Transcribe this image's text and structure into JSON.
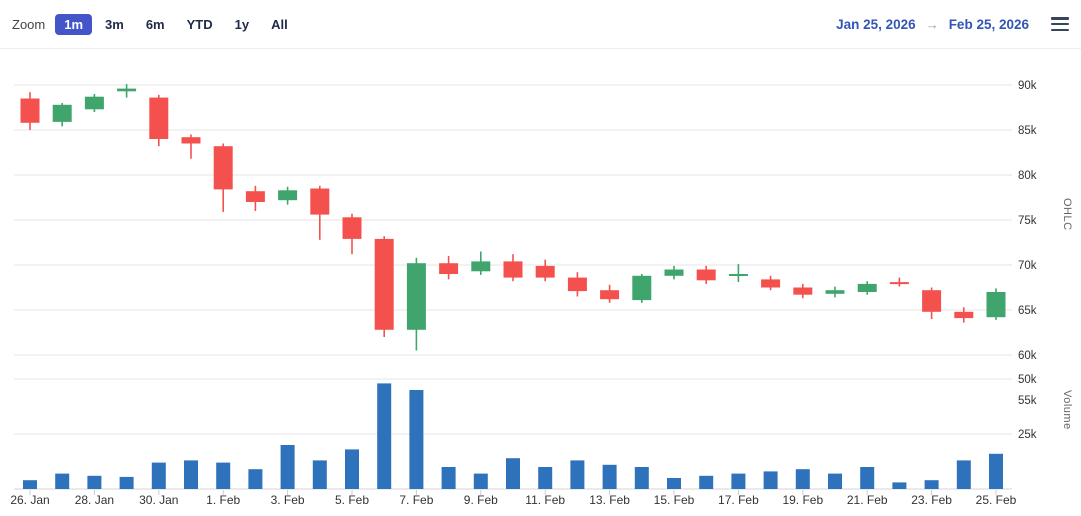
{
  "toolbar": {
    "zoom_label": "Zoom",
    "buttons": [
      {
        "label": "1m",
        "selected": true
      },
      {
        "label": "3m",
        "selected": false
      },
      {
        "label": "6m",
        "selected": false
      },
      {
        "label": "YTD",
        "selected": false
      },
      {
        "label": "1y",
        "selected": false
      },
      {
        "label": "All",
        "selected": false
      }
    ],
    "range_from": "Jan 25, 2026",
    "arrow": "→",
    "range_to": "Feb 25, 2026"
  },
  "colors": {
    "accent": "#4355c9",
    "link": "#3356b5",
    "up": "#3fa56d",
    "down": "#f4514e",
    "volume": "#2d72ba",
    "grid": "#e6e6e6",
    "axis_text": "#333333",
    "baseline": "#d6d6d6"
  },
  "chart_data": [
    {
      "type": "candlestick",
      "title": "",
      "ylabel": "OHLC",
      "units": "values in thousands (k)",
      "ylim_k": [
        55,
        90
      ],
      "y_ticks_k": [
        90,
        85,
        80,
        75,
        70,
        65,
        60,
        55
      ],
      "y_tick_labels": [
        "90k",
        "85k",
        "80k",
        "75k",
        "70k",
        "65k",
        "60k",
        "55k"
      ],
      "x_tick_labels": [
        "26. Jan",
        "28. Jan",
        "30. Jan",
        "1. Feb",
        "3. Feb",
        "5. Feb",
        "7. Feb",
        "9. Feb",
        "11. Feb",
        "13. Feb",
        "15. Feb",
        "17. Feb",
        "19. Feb",
        "21. Feb",
        "23. Feb",
        "25. Feb"
      ],
      "x": [
        "26 Jan",
        "27 Jan",
        "28 Jan",
        "29 Jan",
        "30 Jan",
        "31 Jan",
        "1 Feb",
        "2 Feb",
        "3 Feb",
        "4 Feb",
        "5 Feb",
        "6 Feb",
        "7 Feb",
        "8 Feb",
        "9 Feb",
        "10 Feb",
        "11 Feb",
        "12 Feb",
        "13 Feb",
        "14 Feb",
        "15 Feb",
        "16 Feb",
        "17 Feb",
        "18 Feb",
        "19 Feb",
        "20 Feb",
        "21 Feb",
        "22 Feb",
        "23 Feb",
        "24 Feb",
        "25 Feb"
      ],
      "ohlc_k": [
        [
          88.5,
          89.2,
          85.0,
          85.8
        ],
        [
          85.9,
          88.0,
          85.4,
          87.8
        ],
        [
          87.3,
          89.0,
          87.0,
          88.7
        ],
        [
          89.3,
          90.1,
          88.6,
          89.6
        ],
        [
          88.6,
          88.9,
          83.2,
          84.0
        ],
        [
          84.2,
          84.5,
          81.8,
          83.5
        ],
        [
          83.2,
          83.5,
          75.9,
          78.4
        ],
        [
          78.2,
          78.8,
          76.0,
          77.0
        ],
        [
          77.2,
          78.7,
          76.7,
          78.3
        ],
        [
          78.5,
          78.8,
          72.8,
          75.6
        ],
        [
          75.3,
          75.7,
          71.2,
          72.9
        ],
        [
          72.9,
          73.2,
          62.0,
          62.8
        ],
        [
          62.8,
          70.8,
          60.5,
          70.2
        ],
        [
          70.2,
          71.0,
          68.4,
          69.0
        ],
        [
          69.3,
          71.5,
          68.9,
          70.4
        ],
        [
          70.4,
          71.2,
          68.2,
          68.6
        ],
        [
          69.9,
          70.6,
          68.2,
          68.6
        ],
        [
          68.6,
          69.2,
          66.5,
          67.1
        ],
        [
          67.2,
          67.8,
          65.8,
          66.2
        ],
        [
          66.1,
          69.0,
          65.8,
          68.8
        ],
        [
          68.8,
          69.9,
          68.4,
          69.5
        ],
        [
          69.5,
          69.9,
          67.9,
          68.3
        ],
        [
          68.9,
          70.1,
          68.1,
          69.0
        ],
        [
          68.4,
          68.8,
          67.2,
          67.5
        ],
        [
          67.5,
          67.9,
          66.3,
          66.7
        ],
        [
          66.8,
          67.6,
          66.4,
          67.2
        ],
        [
          67.0,
          68.2,
          66.7,
          67.9
        ],
        [
          68.1,
          68.6,
          67.6,
          67.9
        ],
        [
          67.2,
          67.5,
          64.0,
          64.8
        ],
        [
          64.8,
          65.3,
          63.6,
          64.1
        ],
        [
          64.2,
          67.4,
          63.9,
          67.0
        ]
      ],
      "legend": "none",
      "grid": "horizontal"
    },
    {
      "type": "bar",
      "name": "Volume",
      "ylabel": "Volume",
      "units": "values in thousands (k)",
      "ylim_k": [
        0,
        55
      ],
      "y_ticks_k": [
        50,
        25
      ],
      "y_tick_labels": [
        "50k",
        "25k"
      ],
      "x_shared_with": "candlestick",
      "values_k": [
        4,
        7,
        6,
        5.5,
        12,
        13,
        12,
        9,
        20,
        13,
        18,
        48,
        45,
        10,
        7,
        14,
        10,
        13,
        11,
        10,
        5,
        6,
        7,
        8,
        9,
        7,
        10,
        3,
        4,
        13,
        16
      ]
    }
  ]
}
